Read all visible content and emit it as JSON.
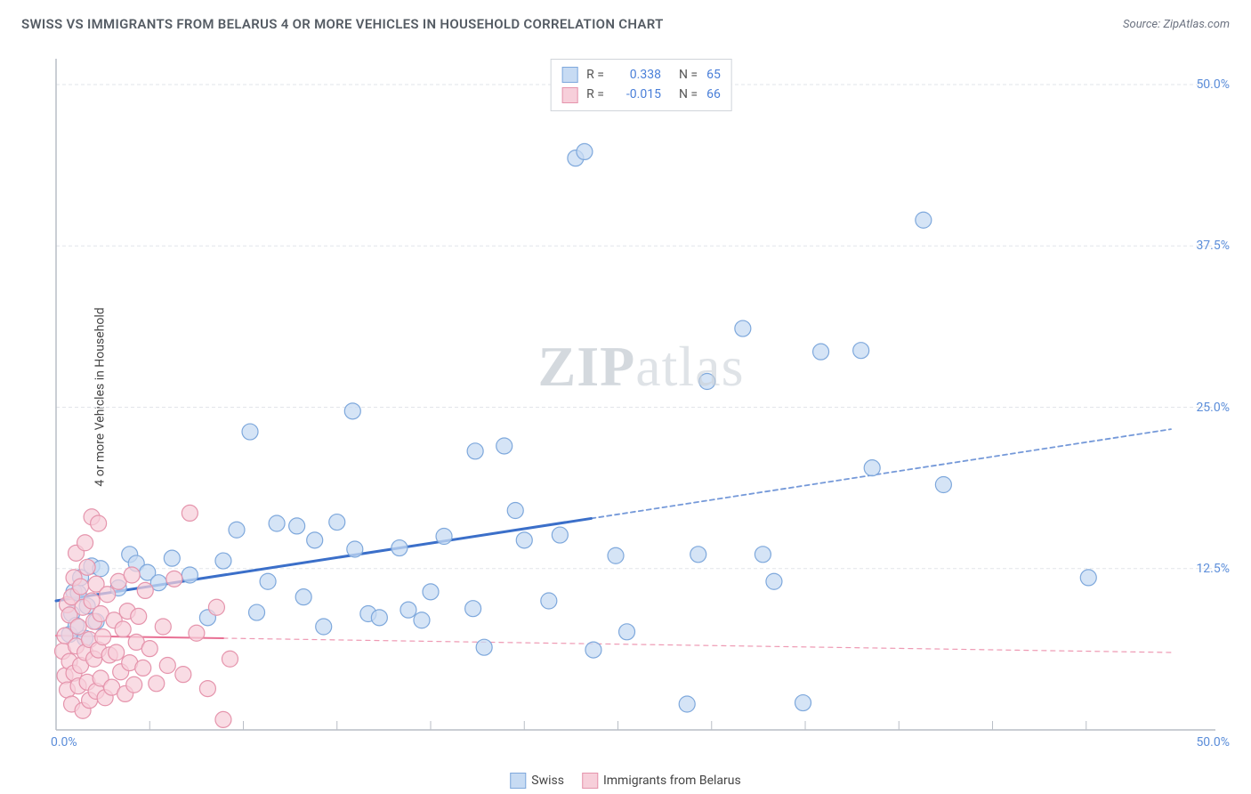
{
  "header": {
    "title": "SWISS VS IMMIGRANTS FROM BELARUS 4 OR MORE VEHICLES IN HOUSEHOLD CORRELATION CHART",
    "source_prefix": "Source: ",
    "source_name": "ZipAtlas.com"
  },
  "y_axis_label": "4 or more Vehicles in Household",
  "watermark": "ZIPatlas",
  "chart": {
    "type": "scatter",
    "xlim": [
      0,
      50
    ],
    "ylim": [
      0,
      52
    ],
    "x_origin_label": "0.0%",
    "x_max_label": "50.0%",
    "y_ticks": [
      {
        "v": 12.5,
        "label": "12.5%"
      },
      {
        "v": 25.0,
        "label": "25.0%"
      },
      {
        "v": 37.5,
        "label": "37.5%"
      },
      {
        "v": 50.0,
        "label": "50.0%"
      }
    ],
    "x_minor_ticks": [
      4.2,
      8.4,
      12.6,
      16.8,
      21.0,
      25.2,
      29.4,
      33.6,
      37.8,
      42.0,
      46.2
    ],
    "grid_color": "#e2e5ea",
    "grid_dash": "4 3",
    "axis_color": "#b9bec6",
    "background_color": "#ffffff",
    "marker_radius": 9,
    "marker_stroke_width": 1.2,
    "series": [
      {
        "name": "Swiss",
        "fill": "#c7dbf3",
        "stroke": "#7ea8dc",
        "fill_opacity": 0.75,
        "points": [
          [
            0.6,
            7.4
          ],
          [
            0.7,
            9.0
          ],
          [
            0.8,
            10.7
          ],
          [
            0.9,
            8.1
          ],
          [
            1.0,
            10.6
          ],
          [
            1.1,
            11.8
          ],
          [
            1.3,
            7.1
          ],
          [
            1.4,
            9.6
          ],
          [
            1.6,
            12.7
          ],
          [
            1.8,
            8.4
          ],
          [
            2.0,
            12.5
          ],
          [
            2.8,
            11.0
          ],
          [
            3.3,
            13.6
          ],
          [
            3.6,
            12.9
          ],
          [
            4.1,
            12.2
          ],
          [
            4.6,
            11.4
          ],
          [
            5.2,
            13.3
          ],
          [
            6.0,
            12.0
          ],
          [
            6.8,
            8.7
          ],
          [
            7.5,
            13.1
          ],
          [
            8.1,
            15.5
          ],
          [
            8.7,
            23.1
          ],
          [
            9.0,
            9.1
          ],
          [
            9.9,
            16.0
          ],
          [
            10.8,
            15.8
          ],
          [
            11.1,
            10.3
          ],
          [
            11.6,
            14.7
          ],
          [
            12.6,
            16.1
          ],
          [
            13.3,
            24.7
          ],
          [
            13.4,
            14.0
          ],
          [
            14.0,
            9.0
          ],
          [
            14.5,
            8.7
          ],
          [
            15.4,
            14.1
          ],
          [
            15.8,
            9.3
          ],
          [
            16.4,
            8.5
          ],
          [
            16.8,
            10.7
          ],
          [
            17.4,
            15.0
          ],
          [
            18.7,
            9.4
          ],
          [
            18.8,
            21.6
          ],
          [
            19.2,
            6.4
          ],
          [
            20.1,
            22.0
          ],
          [
            20.6,
            17.0
          ],
          [
            21.0,
            14.7
          ],
          [
            22.6,
            15.1
          ],
          [
            23.3,
            44.3
          ],
          [
            23.7,
            44.8
          ],
          [
            24.1,
            6.2
          ],
          [
            25.1,
            13.5
          ],
          [
            25.6,
            7.6
          ],
          [
            28.3,
            2.0
          ],
          [
            28.8,
            13.6
          ],
          [
            29.2,
            27.0
          ],
          [
            30.8,
            31.1
          ],
          [
            31.7,
            13.6
          ],
          [
            32.2,
            11.5
          ],
          [
            33.5,
            2.1
          ],
          [
            34.3,
            29.3
          ],
          [
            36.1,
            29.4
          ],
          [
            36.6,
            20.3
          ],
          [
            38.9,
            39.5
          ],
          [
            39.8,
            19.0
          ],
          [
            46.3,
            11.8
          ],
          [
            22.1,
            10.0
          ],
          [
            12.0,
            8.0
          ],
          [
            9.5,
            11.5
          ]
        ],
        "trend": {
          "x1": 0,
          "y1": 10.0,
          "x2": 50,
          "y2": 23.3,
          "stroke": "#3b6fc9",
          "width": 3,
          "solid_until_x": 24,
          "dash_after": "5 4"
        }
      },
      {
        "name": "Immigrants from Belarus",
        "fill": "#f7cfda",
        "stroke": "#e594ac",
        "fill_opacity": 0.72,
        "points": [
          [
            0.3,
            6.1
          ],
          [
            0.4,
            7.3
          ],
          [
            0.4,
            4.2
          ],
          [
            0.5,
            9.7
          ],
          [
            0.5,
            3.1
          ],
          [
            0.6,
            5.3
          ],
          [
            0.6,
            8.9
          ],
          [
            0.7,
            10.3
          ],
          [
            0.7,
            2.0
          ],
          [
            0.8,
            11.8
          ],
          [
            0.8,
            4.4
          ],
          [
            0.9,
            6.5
          ],
          [
            0.9,
            13.7
          ],
          [
            1.0,
            3.4
          ],
          [
            1.0,
            8.0
          ],
          [
            1.1,
            5.0
          ],
          [
            1.1,
            11.1
          ],
          [
            1.2,
            1.5
          ],
          [
            1.2,
            9.5
          ],
          [
            1.3,
            14.5
          ],
          [
            1.3,
            6.0
          ],
          [
            1.4,
            3.7
          ],
          [
            1.4,
            12.6
          ],
          [
            1.5,
            7.0
          ],
          [
            1.5,
            2.3
          ],
          [
            1.6,
            10.0
          ],
          [
            1.6,
            16.5
          ],
          [
            1.7,
            5.5
          ],
          [
            1.7,
            8.4
          ],
          [
            1.8,
            3.0
          ],
          [
            1.8,
            11.3
          ],
          [
            1.9,
            6.2
          ],
          [
            1.9,
            16.0
          ],
          [
            2.0,
            4.0
          ],
          [
            2.0,
            9.0
          ],
          [
            2.1,
            7.2
          ],
          [
            2.2,
            2.5
          ],
          [
            2.3,
            10.5
          ],
          [
            2.4,
            5.8
          ],
          [
            2.5,
            3.3
          ],
          [
            2.6,
            8.5
          ],
          [
            2.7,
            6.0
          ],
          [
            2.8,
            11.5
          ],
          [
            2.9,
            4.5
          ],
          [
            3.0,
            7.8
          ],
          [
            3.1,
            2.8
          ],
          [
            3.2,
            9.2
          ],
          [
            3.3,
            5.2
          ],
          [
            3.4,
            12.0
          ],
          [
            3.5,
            3.5
          ],
          [
            3.6,
            6.8
          ],
          [
            3.7,
            8.8
          ],
          [
            3.9,
            4.8
          ],
          [
            4.0,
            10.8
          ],
          [
            4.2,
            6.3
          ],
          [
            4.5,
            3.6
          ],
          [
            4.8,
            8.0
          ],
          [
            5.0,
            5.0
          ],
          [
            5.3,
            11.7
          ],
          [
            5.7,
            4.3
          ],
          [
            6.0,
            16.8
          ],
          [
            6.3,
            7.5
          ],
          [
            6.8,
            3.2
          ],
          [
            7.2,
            9.5
          ],
          [
            7.5,
            0.8
          ],
          [
            7.8,
            5.5
          ]
        ],
        "trend": {
          "x1": 0,
          "y1": 7.3,
          "x2": 50,
          "y2": 6.0,
          "stroke": "#e86f93",
          "width": 2,
          "solid_until_x": 7.5,
          "dash_after": "5 5"
        }
      }
    ]
  },
  "stats_legend": [
    {
      "swatch_fill": "#c7dbf3",
      "swatch_stroke": "#7ea8dc",
      "r": "0.338",
      "n": "65"
    },
    {
      "swatch_fill": "#f7cfda",
      "swatch_stroke": "#e594ac",
      "r": "-0.015",
      "n": "66"
    }
  ],
  "bottom_legend": [
    {
      "swatch_fill": "#c7dbf3",
      "swatch_stroke": "#7ea8dc",
      "label": "Swiss"
    },
    {
      "swatch_fill": "#f7cfda",
      "swatch_stroke": "#e594ac",
      "label": "Immigrants from Belarus"
    }
  ],
  "labels": {
    "r_prefix": "R =",
    "n_prefix": "N ="
  }
}
